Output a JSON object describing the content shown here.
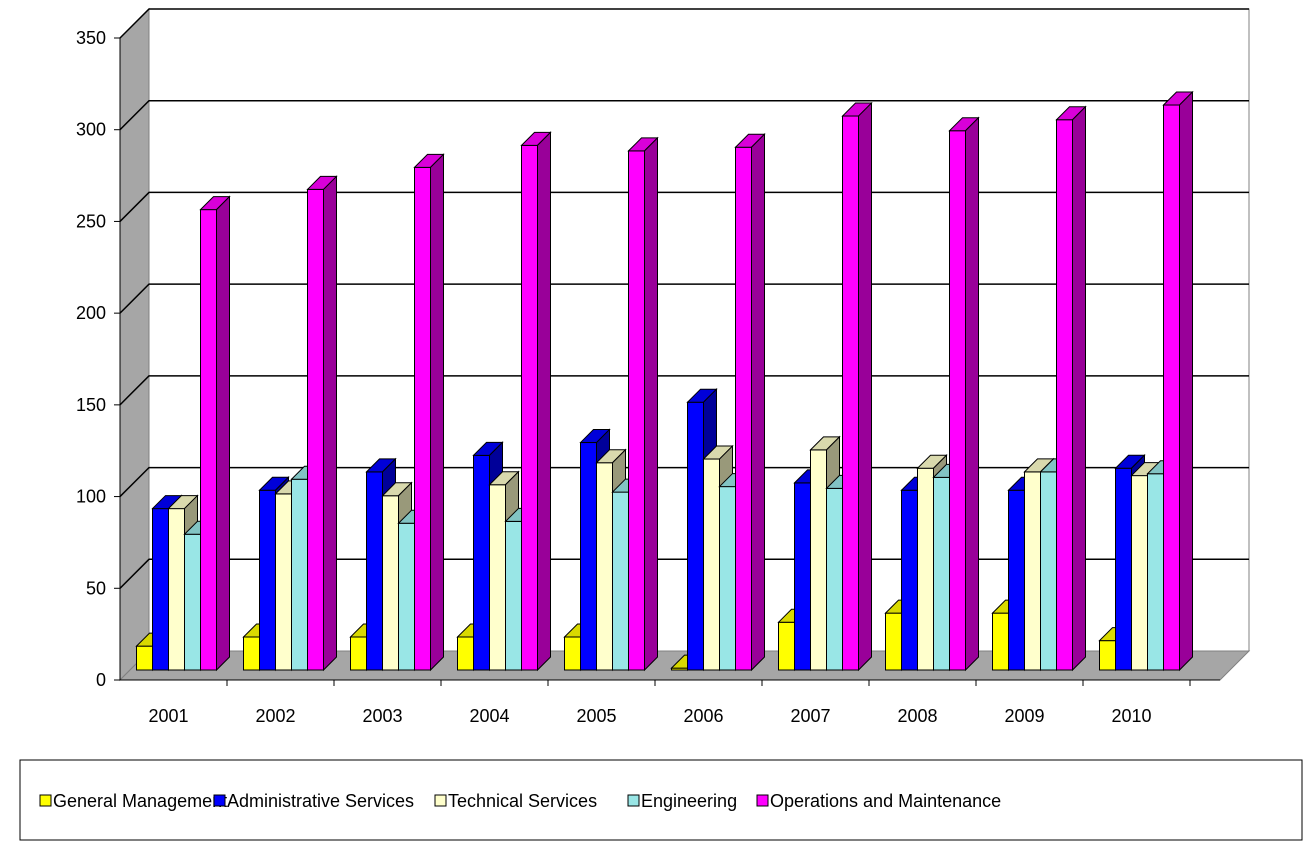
{
  "chart_data": {
    "type": "bar",
    "categories": [
      "2001",
      "2002",
      "2003",
      "2004",
      "2005",
      "2006",
      "2007",
      "2008",
      "2009",
      "2010"
    ],
    "series": [
      {
        "name": "General Management",
        "values": [
          13,
          18,
          18,
          18,
          18,
          1,
          26,
          31,
          31,
          16
        ]
      },
      {
        "name": "Administrative Services",
        "values": [
          88,
          98,
          108,
          117,
          124,
          146,
          102,
          98,
          98,
          110
        ]
      },
      {
        "name": "Technical Services",
        "values": [
          88,
          96,
          95,
          101,
          113,
          115,
          120,
          110,
          108,
          106
        ]
      },
      {
        "name": "Engineering",
        "values": [
          74,
          104,
          80,
          81,
          97,
          100,
          99,
          105,
          108,
          107
        ]
      },
      {
        "name": "Operations and Maintenance",
        "values": [
          251,
          262,
          274,
          286,
          283,
          285,
          302,
          294,
          300,
          308
        ]
      }
    ],
    "ylim": [
      0,
      350
    ],
    "yticks": [
      0,
      50,
      100,
      150,
      200,
      250,
      300,
      350
    ],
    "grid": true,
    "legend_position": "bottom",
    "style": "3d-clustered-column",
    "colors": [
      "#FFFF00",
      "#0000FF",
      "#FFFFCC",
      "#99E6E6",
      "#FF00FF"
    ]
  }
}
